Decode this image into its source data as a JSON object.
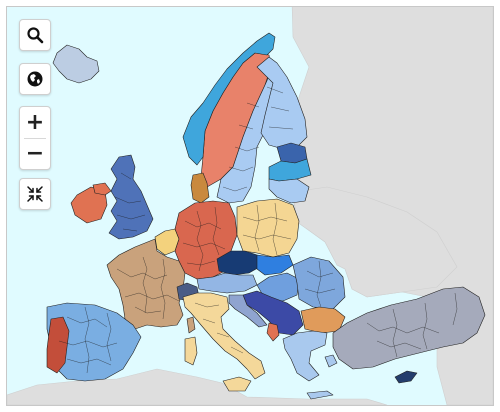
{
  "map": {
    "colors": {
      "sea": "#e0fbff",
      "non_eu_land": "#dedede",
      "norway": "#e8826a",
      "sweden_finland": "#a9cbf2",
      "nordic_blue": "#3fa6dc",
      "iceland": "#bccde3",
      "germany": "#d9674f",
      "france": "#c9a27c",
      "spain": "#7aaee2",
      "portugal": "#c34e3a",
      "uk": "#4f72b8",
      "ireland": "#e07252",
      "italy": "#f4d89a",
      "poland": "#f4d693",
      "czechia": "#173b74",
      "slovakia": "#2f7fe0",
      "austria": "#93b6e4",
      "hungary": "#6f9fde",
      "romania": "#7ea7dc",
      "bulgaria": "#e09b5b",
      "greece": "#a9c9ee",
      "turkey": "#a5aabb",
      "balkans": "#3c4aa6",
      "denmark": "#c9893e",
      "baltic": "#3a64ac",
      "benelux": "#f3d27d",
      "cyprus": "#243d6d"
    }
  },
  "controls": {
    "search": {
      "icon": "search-icon"
    },
    "globe": {
      "icon": "globe-icon"
    },
    "zoom_in": {
      "label": "+"
    },
    "zoom_out": {
      "label": "−"
    },
    "reset": {
      "icon": "reset-view-icon"
    }
  }
}
